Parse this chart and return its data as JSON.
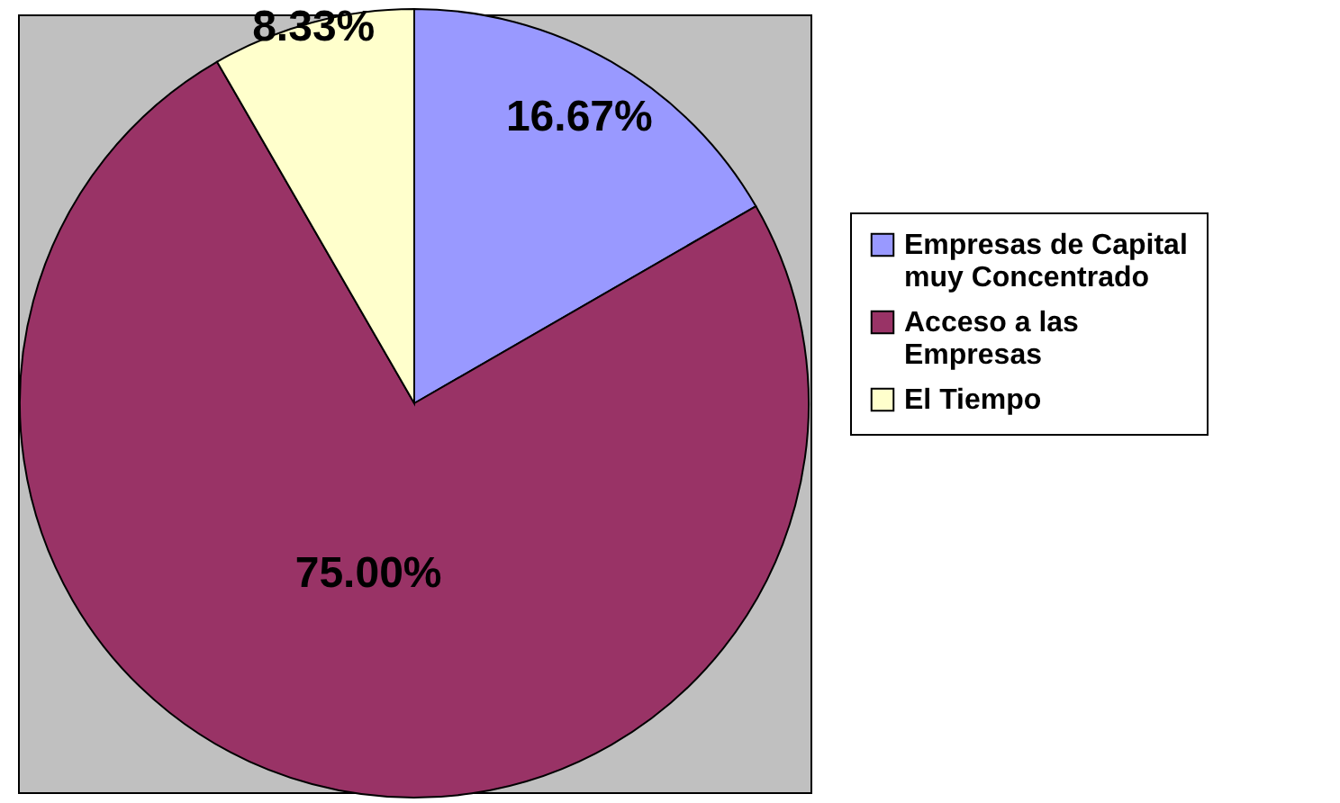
{
  "chart_data": {
    "type": "pie",
    "categories": [
      "Empresas de Capital muy Concentrado",
      "Acceso a las Empresas",
      "El Tiempo"
    ],
    "values": [
      16.67,
      75.0,
      8.33
    ],
    "colors": [
      "#9999ff",
      "#993366",
      "#ffffcc"
    ],
    "value_labels": [
      "16.67%",
      "75.00%",
      "8.33%"
    ],
    "legend": "right"
  }
}
